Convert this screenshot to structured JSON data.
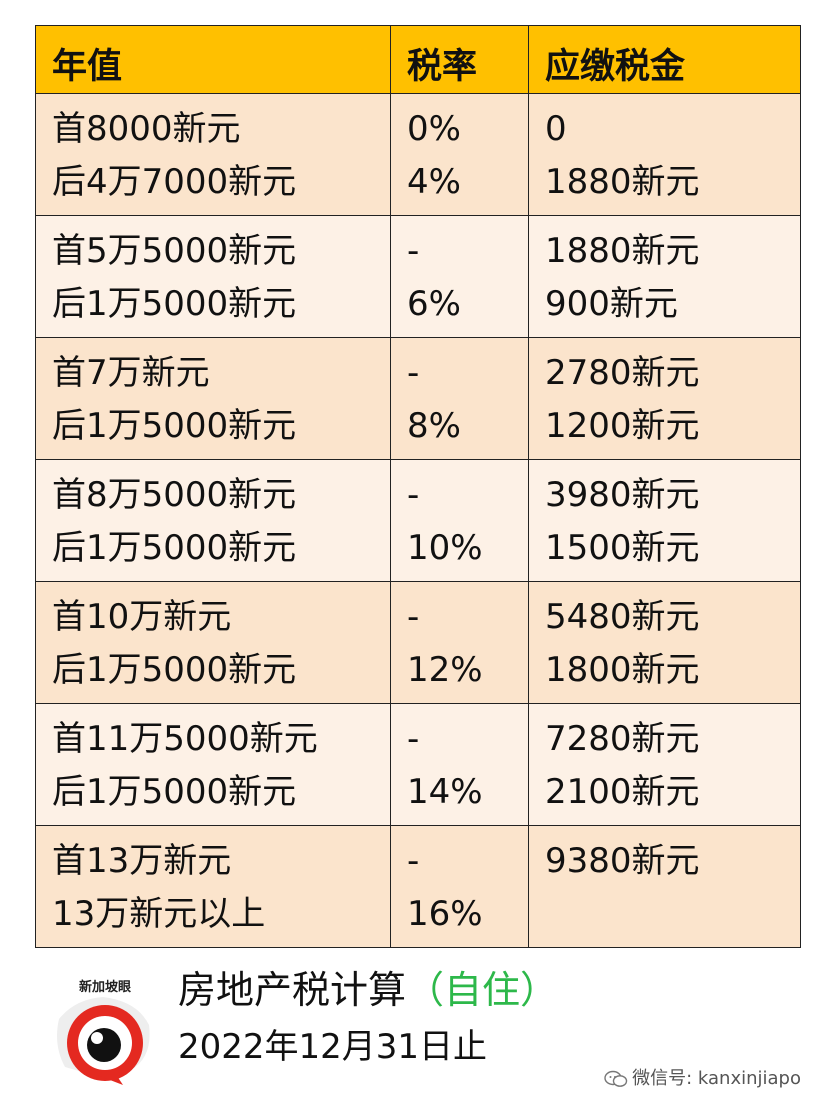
{
  "table": {
    "headers": [
      "年值",
      "税率",
      "应缴税金"
    ],
    "rows": [
      {
        "income": [
          "首8000新元",
          "后4万7000新元"
        ],
        "rate": [
          "0%",
          "4%"
        ],
        "tax": [
          "0",
          "1880新元"
        ]
      },
      {
        "income": [
          "首5万5000新元",
          "后1万5000新元"
        ],
        "rate": [
          "-",
          "6%"
        ],
        "tax": [
          "1880新元",
          "900新元"
        ]
      },
      {
        "income": [
          "首7万新元",
          "后1万5000新元"
        ],
        "rate": [
          "-",
          "8%"
        ],
        "tax": [
          "2780新元",
          "1200新元"
        ]
      },
      {
        "income": [
          "首8万5000新元",
          "后1万5000新元"
        ],
        "rate": [
          "-",
          "10%"
        ],
        "tax": [
          "3980新元",
          "1500新元"
        ]
      },
      {
        "income": [
          "首10万新元",
          "后1万5000新元"
        ],
        "rate": [
          "-",
          "12%"
        ],
        "tax": [
          "5480新元",
          "1800新元"
        ]
      },
      {
        "income": [
          "首11万5000新元",
          "后1万5000新元"
        ],
        "rate": [
          "-",
          "14%"
        ],
        "tax": [
          "7280新元",
          "2100新元"
        ]
      },
      {
        "income": [
          "首13万新元",
          "13万新元以上"
        ],
        "rate": [
          "-",
          "16%"
        ],
        "tax": [
          "9380新元",
          ""
        ]
      }
    ]
  },
  "caption": {
    "title": "房地产税计算",
    "title_accent": "（自住）",
    "date": "2022年12月31日止"
  },
  "logo": {
    "text": "新加坡眼",
    "icon": "eye-logo-icon"
  },
  "watermark": {
    "text": "微信号: kanxinjiapo",
    "icon": "wechat-icon"
  },
  "colors": {
    "header": "#ffc000",
    "row_dark": "#fbe4cc",
    "row_light": "#fdf1e6",
    "accent": "#2db84a",
    "logo_red": "#e42920"
  }
}
